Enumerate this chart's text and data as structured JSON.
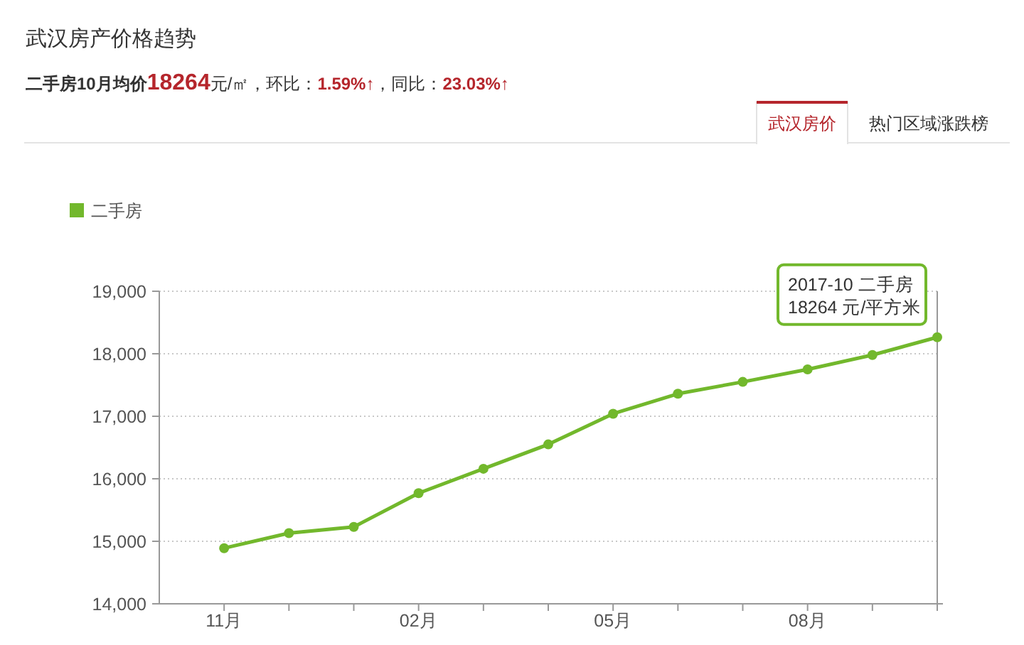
{
  "chart_data": {
    "type": "line",
    "title": "武汉房产价格趋势",
    "subtitle": "二手房10月均价18264元/㎡，环比：1.59%↑，同比：23.03%↑",
    "categories": [
      "11月",
      null,
      null,
      "02月",
      null,
      null,
      "05月",
      null,
      null,
      "08月",
      null,
      null
    ],
    "series": [
      {
        "name": "二手房",
        "color": "#72b82c",
        "values": [
          14890,
          15130,
          15230,
          15770,
          16160,
          16550,
          17040,
          17360,
          17550,
          17750,
          17980,
          18264
        ]
      }
    ],
    "ylim": [
      14000,
      19000
    ],
    "yticks": [
      {
        "value": 14000,
        "label": "14,000"
      },
      {
        "value": 15000,
        "label": "15,000"
      },
      {
        "value": 16000,
        "label": "16,000"
      },
      {
        "value": 17000,
        "label": "17,000"
      },
      {
        "value": 18000,
        "label": "18,000"
      },
      {
        "value": 19000,
        "label": "19,000"
      }
    ],
    "grid": "y",
    "legend": "top left",
    "marker": "circle",
    "line_style": "solid",
    "annotations": [
      "2017-10 二手房\n18264 元/平方米",
      "武汉房价",
      "热门区域涨跌榜"
    ]
  }
}
